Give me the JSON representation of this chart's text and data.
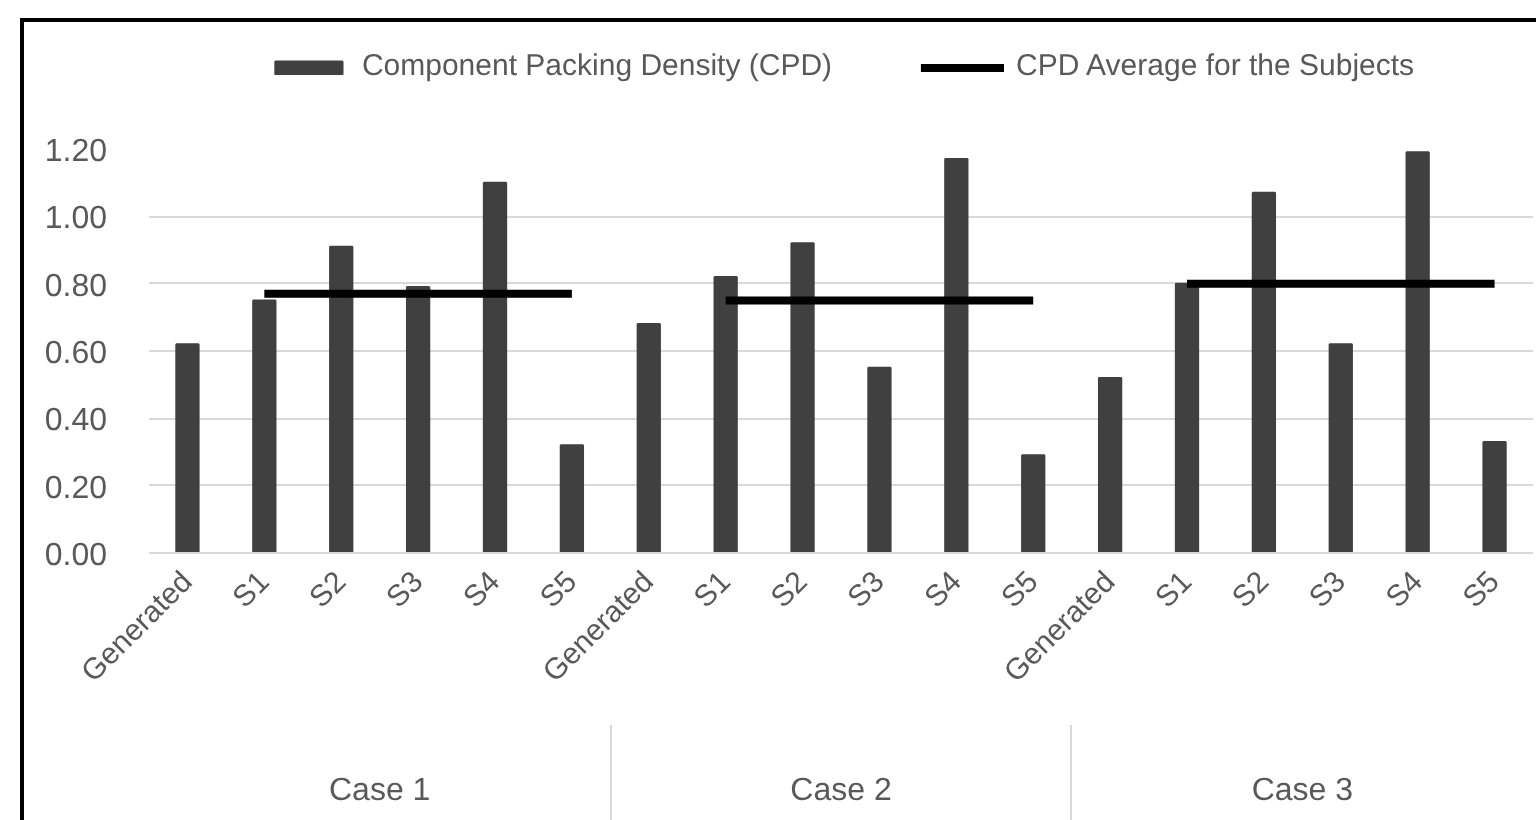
{
  "chart_data": {
    "type": "bar",
    "categories": [
      "Generated",
      "S1",
      "S2",
      "S3",
      "S4",
      "S5",
      "Generated",
      "S1",
      "S2",
      "S3",
      "S4",
      "S5",
      "Generated",
      "S1",
      "S2",
      "S3",
      "S4",
      "S5"
    ],
    "annotations": [
      "Case 1",
      "Case 2",
      "Case 3"
    ],
    "series": [
      {
        "name": "Component Packing Density (CPD)",
        "color": "#404040",
        "values": [
          0.62,
          0.75,
          0.91,
          0.79,
          1.1,
          0.32,
          0.68,
          0.82,
          0.92,
          0.55,
          1.17,
          0.29,
          0.52,
          0.8,
          1.07,
          0.62,
          1.19,
          0.33
        ]
      },
      {
        "name": "CPD Average for the Subjects",
        "type": "line",
        "color": "#000000",
        "values": [
          null,
          0.77,
          0.77,
          0.77,
          0.77,
          0.77,
          null,
          0.75,
          0.75,
          0.75,
          0.75,
          0.75,
          null,
          0.8,
          0.8,
          0.8,
          0.8,
          0.8
        ]
      }
    ],
    "ylim": [
      0,
      1.2
    ],
    "yticks": [
      {
        "value": 0,
        "label": "0.00"
      },
      {
        "value": 0.2,
        "label": "0.20"
      },
      {
        "value": 0.4,
        "label": "0.40"
      },
      {
        "value": 0.6,
        "label": "0.60"
      },
      {
        "value": 0.8,
        "label": "0.80"
      },
      {
        "value": 1.0,
        "label": "1.00"
      },
      {
        "value": 1.2,
        "label": "1.20"
      }
    ],
    "grid": "y",
    "legend": "top"
  }
}
